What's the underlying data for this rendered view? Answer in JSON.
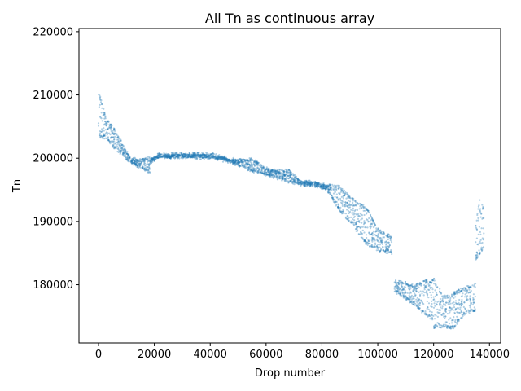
{
  "chart_data": {
    "type": "scatter",
    "title": "All Tn as continuous array",
    "xlabel": "Drop number",
    "ylabel": "Tn",
    "xlim": [
      -7000,
      144000
    ],
    "ylim": [
      170800,
      220500
    ],
    "xticks": [
      0,
      20000,
      40000,
      60000,
      80000,
      100000,
      120000,
      140000
    ],
    "xtick_labels": [
      "0",
      "20000",
      "40000",
      "60000",
      "80000",
      "100000",
      "120000",
      "140000"
    ],
    "yticks": [
      180000,
      190000,
      200000,
      210000,
      220000
    ],
    "ytick_labels": [
      "180000",
      "190000",
      "200000",
      "210000",
      "220000"
    ],
    "grid": false,
    "legend": "none",
    "series_color": "#1f77b4",
    "bands": [
      {
        "x": [
          0,
          5000
        ],
        "y": [
          [
            203500,
            210500
          ],
          [
            203300,
            206500
          ],
          [
            202000,
            205000
          ]
        ]
      },
      {
        "x": [
          5000,
          18500
        ],
        "y": [
          [
            202000,
            205000
          ],
          [
            199300,
            199800
          ],
          [
            197800,
            200000
          ]
        ]
      },
      {
        "x": [
          18500,
          26000
        ],
        "y": [
          [
            199300,
            199800
          ],
          [
            200200,
            200700
          ],
          [
            200000,
            200500
          ]
        ]
      },
      {
        "x": [
          26000,
          40000
        ],
        "y": [
          [
            200200,
            200700
          ],
          [
            200100,
            200700
          ],
          [
            200000,
            200600
          ]
        ]
      },
      {
        "x": [
          40000,
          55000
        ],
        "y": [
          [
            200100,
            200700
          ],
          [
            199400,
            199800
          ],
          [
            198000,
            199800
          ]
        ]
      },
      {
        "x": [
          55000,
          68000
        ],
        "y": [
          [
            198000,
            199800
          ],
          [
            197200,
            198000
          ],
          [
            196300,
            198000
          ]
        ]
      },
      {
        "x": [
          68000,
          78000
        ],
        "y": [
          [
            196300,
            198000
          ],
          [
            195800,
            196300
          ],
          [
            195600,
            196200
          ]
        ]
      },
      {
        "x": [
          78000,
          86000
        ],
        "y": [
          [
            195600,
            196200
          ],
          [
            195000,
            195700
          ],
          [
            192000,
            195500
          ]
        ]
      },
      {
        "x": [
          86000,
          96000
        ],
        "y": [
          [
            192000,
            195500
          ],
          [
            189500,
            193500
          ],
          [
            186500,
            192000
          ]
        ]
      },
      {
        "x": [
          96000,
          105000
        ],
        "y": [
          [
            186500,
            192000
          ],
          [
            185500,
            188500
          ],
          [
            185000,
            187500
          ]
        ]
      },
      {
        "x": [
          106000,
          113000
        ],
        "y": [
          [
            179000,
            180500
          ],
          [
            178000,
            180300
          ],
          [
            177000,
            179800
          ]
        ]
      },
      {
        "x": [
          113000,
          120000
        ],
        "y": [
          [
            177000,
            179800
          ],
          [
            175500,
            180500
          ],
          [
            174500,
            180500
          ]
        ]
      },
      {
        "x": [
          120000,
          127000
        ],
        "y": [
          [
            173300,
            181000
          ],
          [
            173500,
            178000
          ],
          [
            173200,
            178500
          ]
        ]
      },
      {
        "x": [
          127000,
          135000
        ],
        "y": [
          [
            173200,
            178500
          ],
          [
            175500,
            179500
          ],
          [
            176000,
            180000
          ]
        ]
      },
      {
        "x": [
          135000,
          138000
        ],
        "y": [
          [
            184000,
            189000
          ],
          [
            185000,
            193500
          ],
          [
            186000,
            192000
          ]
        ]
      }
    ]
  }
}
